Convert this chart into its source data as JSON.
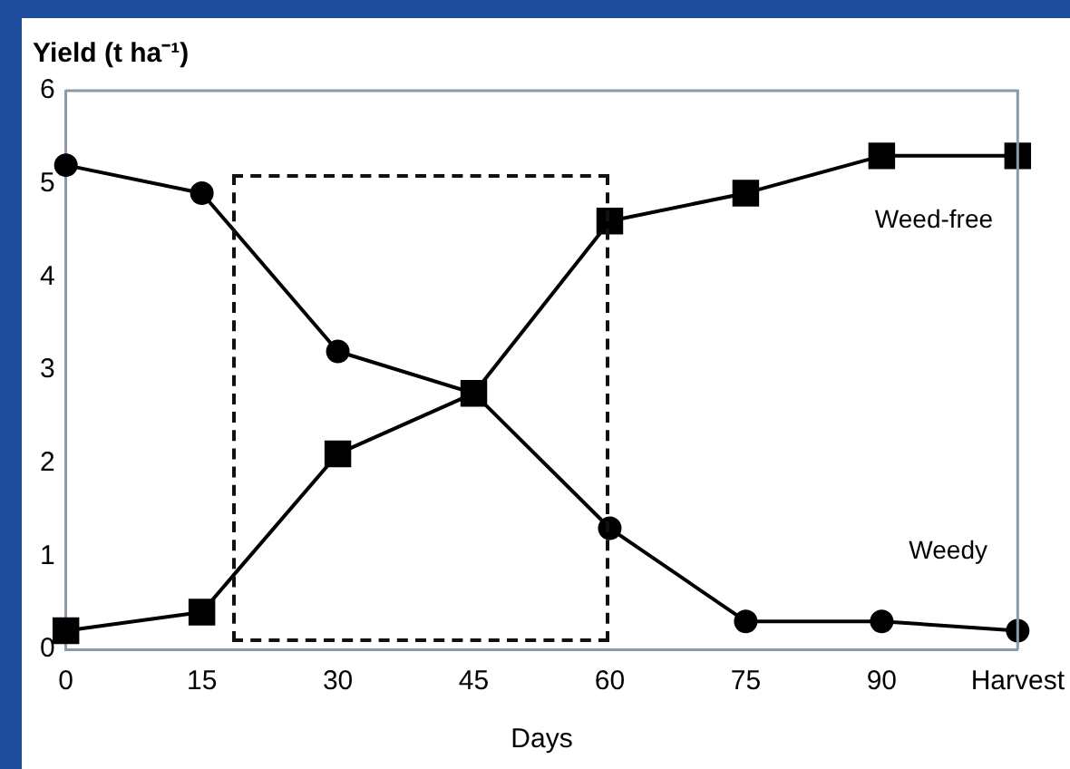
{
  "chart_data": {
    "type": "line",
    "ylabel": "Yield (t ha⁻¹)",
    "xlabel": "Days",
    "categories": [
      "0",
      "15",
      "30",
      "45",
      "60",
      "75",
      "90",
      "Harvest"
    ],
    "series": [
      {
        "name": "Weed-free",
        "color": "#000000",
        "marker": "square",
        "values": [
          0.2,
          0.4,
          2.1,
          2.75,
          4.6,
          4.9,
          5.3,
          5.3
        ]
      },
      {
        "name": "Weedy",
        "color": "#000000",
        "marker": "circle",
        "values": [
          5.2,
          4.9,
          3.2,
          2.75,
          1.3,
          0.3,
          0.3,
          0.2
        ]
      }
    ],
    "ylim": [
      0,
      6
    ],
    "yticks": [
      0,
      1,
      2,
      3,
      4,
      5,
      6
    ],
    "grid": false,
    "legend": false
  }
}
